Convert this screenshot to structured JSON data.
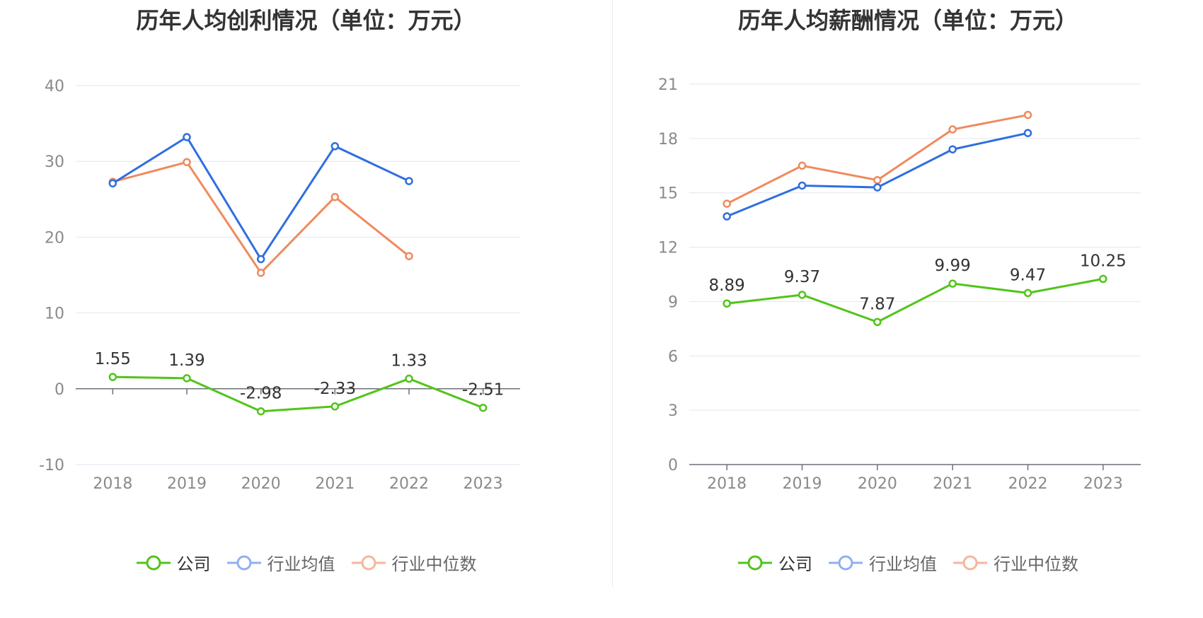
{
  "chart_data": [
    {
      "type": "line",
      "title": "历年人均创利情况（单位：万元）",
      "categories": [
        "2018",
        "2019",
        "2020",
        "2021",
        "2022",
        "2023"
      ],
      "ylim": [
        -10,
        40
      ],
      "yticks": [
        -10,
        0,
        10,
        20,
        30,
        40
      ],
      "grid": true,
      "legend_position": "bottom",
      "series": [
        {
          "name": "公司",
          "color": "#52c41a",
          "values": [
            1.55,
            1.39,
            -2.98,
            -2.33,
            1.33,
            -2.51
          ],
          "labels": [
            "1.55",
            "1.39",
            "-2.98",
            "-2.33",
            "1.33",
            "-2.51"
          ]
        },
        {
          "name": "行业均值",
          "color": "#2f6ee0",
          "values": [
            27.1,
            33.2,
            17.1,
            32.0,
            27.4,
            null
          ]
        },
        {
          "name": "行业中位数",
          "color": "#f08a5d",
          "values": [
            27.3,
            29.9,
            15.3,
            25.3,
            17.5,
            null
          ]
        }
      ]
    },
    {
      "type": "line",
      "title": "历年人均薪酬情况（单位：万元）",
      "categories": [
        "2018",
        "2019",
        "2020",
        "2021",
        "2022",
        "2023"
      ],
      "ylim": [
        0,
        21
      ],
      "yticks": [
        0,
        3,
        6,
        9,
        12,
        15,
        18,
        21
      ],
      "grid": true,
      "legend_position": "bottom",
      "series": [
        {
          "name": "公司",
          "color": "#52c41a",
          "values": [
            8.89,
            9.37,
            7.87,
            9.99,
            9.47,
            10.25
          ],
          "labels": [
            "8.89",
            "9.37",
            "7.87",
            "9.99",
            "9.47",
            "10.25"
          ]
        },
        {
          "name": "行业均值",
          "color": "#2f6ee0",
          "values": [
            13.7,
            15.4,
            15.3,
            17.4,
            18.3,
            null
          ]
        },
        {
          "name": "行业中位数",
          "color": "#f08a5d",
          "values": [
            14.4,
            16.5,
            15.7,
            18.5,
            19.3,
            null
          ]
        }
      ]
    }
  ],
  "legend_colors": {
    "公司": "#52c41a",
    "行业均值": "#8fb0ef",
    "行业中位数": "#f5b79c"
  }
}
